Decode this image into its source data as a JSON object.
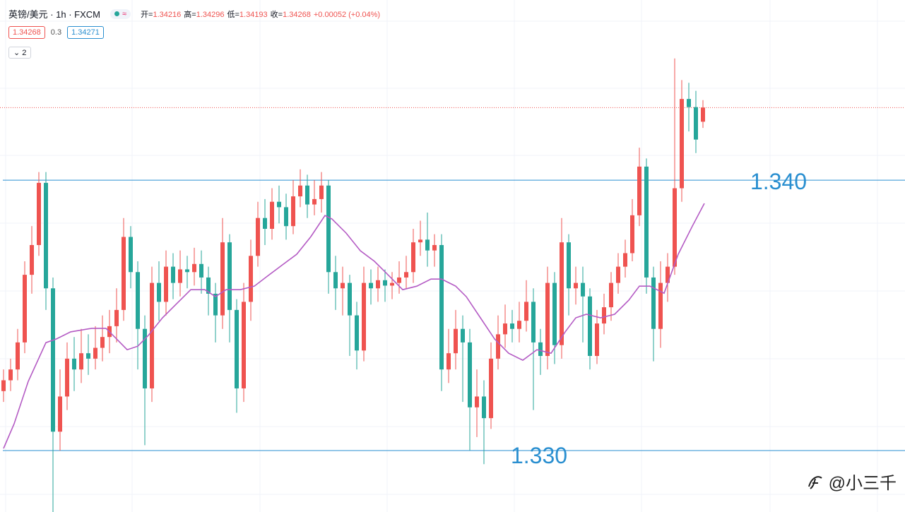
{
  "chart_data": {
    "type": "candlestick",
    "title": "英镑/美元 · 1h · FXCM",
    "header": [
      {
        "label": "开=",
        "value": 1.34216
      },
      {
        "label": "高=",
        "value": 1.34296
      },
      {
        "label": "低=",
        "value": 1.34193
      },
      {
        "label": "收=",
        "value": 1.34268
      }
    ],
    "change": "+0.00052 (+0.04%)",
    "bid": 1.34268,
    "spread": 0.3,
    "ask": 1.34271,
    "indicators": 2,
    "watermark": "@小三千",
    "up_color": "#ef5350",
    "down_color": "#26a69a",
    "ma_color": "#b45bc4",
    "level_color": "#2a8fd0",
    "ylim": [
      1.32773,
      1.34666
    ],
    "open": [
      1.3322,
      1.3326,
      1.333,
      1.334,
      1.3365,
      1.3376,
      1.3399,
      1.336,
      1.3307,
      1.332,
      1.3334,
      1.333,
      1.3336,
      1.3334,
      1.3338,
      1.3342,
      1.3346,
      1.3352,
      1.3379,
      1.3366,
      1.3345,
      1.3323,
      1.3362,
      1.3355,
      1.3368,
      1.3362,
      1.3367,
      1.3366,
      1.3369,
      1.3364,
      1.3358,
      1.335,
      1.3377,
      1.3352,
      1.3323,
      1.3355,
      1.3372,
      1.3386,
      1.3382,
      1.3392,
      1.339,
      1.3383,
      1.3394,
      1.3398,
      1.3391,
      1.3393,
      1.3398,
      1.3366,
      1.336,
      1.3362,
      1.335,
      1.3337,
      1.3362,
      1.336,
      1.3363,
      1.3361,
      1.3362,
      1.3364,
      1.3366,
      1.3377,
      1.3378,
      1.3374,
      1.3376,
      1.333,
      1.3336,
      1.3345,
      1.334,
      1.3316,
      1.332,
      1.3312,
      1.3334,
      1.3343,
      1.3347,
      1.3345,
      1.3348,
      1.3355,
      1.334,
      1.3335,
      1.3362,
      1.3339,
      1.3377,
      1.336,
      1.3362,
      1.3357,
      1.3335,
      1.3347,
      1.3353,
      1.3362,
      1.3368,
      1.3373,
      1.3387,
      1.3405,
      1.3364,
      1.3345,
      1.3362,
      1.3368,
      1.3397,
      1.343,
      1.3427,
      1.34216
    ],
    "high": [
      1.333,
      1.3334,
      1.3345,
      1.337,
      1.3383,
      1.3403,
      1.3403,
      1.3364,
      1.333,
      1.334,
      1.3342,
      1.3345,
      1.3343,
      1.3346,
      1.335,
      1.3352,
      1.336,
      1.3386,
      1.3383,
      1.337,
      1.335,
      1.3368,
      1.337,
      1.3374,
      1.3373,
      1.3374,
      1.3372,
      1.3375,
      1.3374,
      1.3368,
      1.3362,
      1.3386,
      1.338,
      1.3356,
      1.3362,
      1.3378,
      1.3392,
      1.3393,
      1.3397,
      1.3398,
      1.3395,
      1.34,
      1.3404,
      1.3402,
      1.34,
      1.3403,
      1.34,
      1.3372,
      1.3368,
      1.3365,
      1.3355,
      1.3368,
      1.3367,
      1.3368,
      1.3367,
      1.3366,
      1.337,
      1.3372,
      1.3382,
      1.3385,
      1.3388,
      1.338,
      1.338,
      1.3345,
      1.3352,
      1.335,
      1.3345,
      1.333,
      1.3326,
      1.334,
      1.335,
      1.3354,
      1.3352,
      1.3355,
      1.3363,
      1.336,
      1.3345,
      1.3368,
      1.3366,
      1.3386,
      1.338,
      1.3368,
      1.3368,
      1.336,
      1.3352,
      1.3358,
      1.3366,
      1.3373,
      1.3378,
      1.3393,
      1.3412,
      1.3408,
      1.3368,
      1.337,
      1.3373,
      1.3445,
      1.3437,
      1.3436,
      1.3433,
      1.34296
    ],
    "low": [
      1.3318,
      1.3322,
      1.3326,
      1.3336,
      1.3358,
      1.3372,
      1.3352,
      1.3277,
      1.33,
      1.3315,
      1.3322,
      1.3325,
      1.3328,
      1.333,
      1.3333,
      1.3336,
      1.334,
      1.3348,
      1.336,
      1.333,
      1.3302,
      1.3318,
      1.3348,
      1.335,
      1.3356,
      1.3357,
      1.336,
      1.3361,
      1.3358,
      1.335,
      1.334,
      1.3345,
      1.334,
      1.3314,
      1.3318,
      1.3348,
      1.3368,
      1.3376,
      1.3378,
      1.3384,
      1.3378,
      1.338,
      1.339,
      1.3386,
      1.3387,
      1.3388,
      1.3358,
      1.3352,
      1.335,
      1.3335,
      1.333,
      1.3333,
      1.3354,
      1.3355,
      1.3355,
      1.3356,
      1.3358,
      1.336,
      1.3362,
      1.3372,
      1.3368,
      1.3368,
      1.3322,
      1.3325,
      1.333,
      1.3318,
      1.33,
      1.3305,
      1.3295,
      1.3308,
      1.333,
      1.3338,
      1.334,
      1.334,
      1.3344,
      1.3315,
      1.3328,
      1.333,
      1.3332,
      1.3334,
      1.335,
      1.3354,
      1.334,
      1.333,
      1.3332,
      1.3343,
      1.3348,
      1.3358,
      1.3364,
      1.337,
      1.3383,
      1.3358,
      1.3333,
      1.3338,
      1.3355,
      1.3365,
      1.3392,
      1.3418,
      1.341,
      1.34193
    ],
    "close": [
      1.3326,
      1.333,
      1.334,
      1.3365,
      1.3376,
      1.3399,
      1.336,
      1.3307,
      1.332,
      1.3334,
      1.333,
      1.3336,
      1.3334,
      1.3338,
      1.3342,
      1.3346,
      1.3352,
      1.3379,
      1.3366,
      1.3345,
      1.3323,
      1.3362,
      1.3355,
      1.3368,
      1.3362,
      1.3367,
      1.3366,
      1.3369,
      1.3364,
      1.3358,
      1.335,
      1.3377,
      1.3352,
      1.3323,
      1.3355,
      1.3372,
      1.3386,
      1.3382,
      1.3392,
      1.339,
      1.3383,
      1.3394,
      1.3398,
      1.3391,
      1.3393,
      1.3398,
      1.3366,
      1.336,
      1.3362,
      1.335,
      1.3337,
      1.3362,
      1.336,
      1.3363,
      1.3361,
      1.3362,
      1.3364,
      1.3366,
      1.3377,
      1.3378,
      1.3374,
      1.3376,
      1.333,
      1.3336,
      1.3345,
      1.334,
      1.3316,
      1.332,
      1.3312,
      1.3334,
      1.3343,
      1.3347,
      1.3345,
      1.3348,
      1.3355,
      1.334,
      1.3335,
      1.3362,
      1.3339,
      1.3377,
      1.336,
      1.3362,
      1.3357,
      1.3335,
      1.3347,
      1.3353,
      1.3362,
      1.3368,
      1.3373,
      1.3387,
      1.3405,
      1.3364,
      1.3345,
      1.3362,
      1.3368,
      1.3397,
      1.343,
      1.3427,
      1.3415,
      1.34268
    ],
    "ma": {
      "x": [
        0,
        1.5,
        3.5,
        6,
        7.5,
        9.5,
        12.5,
        14.5,
        16,
        17.5,
        19,
        20.5,
        22.5,
        24.5,
        26.5,
        28.5,
        30,
        31.5,
        33.5,
        35.5,
        37.5,
        39.5,
        41.5,
        43.5,
        45.5,
        46.5,
        48.5,
        50.5,
        52.5,
        54.5,
        56.5,
        58.5,
        60.5,
        62,
        64,
        65.5,
        67.5,
        69.5,
        71.5,
        73.5,
        75.5,
        77.5,
        79.5,
        81,
        82.5,
        84.5,
        86.5,
        88.5,
        90,
        91.5,
        93.5,
        95.5,
        97.5,
        99.2
      ],
      "values": [
        1.33008,
        1.33099,
        1.33256,
        1.33399,
        1.33413,
        1.33439,
        1.33452,
        1.33452,
        1.33413,
        1.33373,
        1.33386,
        1.33426,
        1.33491,
        1.33543,
        1.33595,
        1.33595,
        1.33569,
        1.33595,
        1.33595,
        1.33608,
        1.33648,
        1.33687,
        1.33726,
        1.33791,
        1.33869,
        1.33856,
        1.33804,
        1.33739,
        1.337,
        1.33648,
        1.33595,
        1.33608,
        1.33634,
        1.33634,
        1.33608,
        1.33569,
        1.33491,
        1.33413,
        1.3336,
        1.33334,
        1.33373,
        1.3336,
        1.33439,
        1.33491,
        1.33504,
        1.33491,
        1.33504,
        1.33556,
        1.33608,
        1.33608,
        1.33582,
        1.33726,
        1.3383,
        1.33914
      ]
    },
    "levels": [
      {
        "value": 1.34,
        "label": "1.340"
      },
      {
        "value": 1.33,
        "label": "1.330"
      }
    ]
  }
}
